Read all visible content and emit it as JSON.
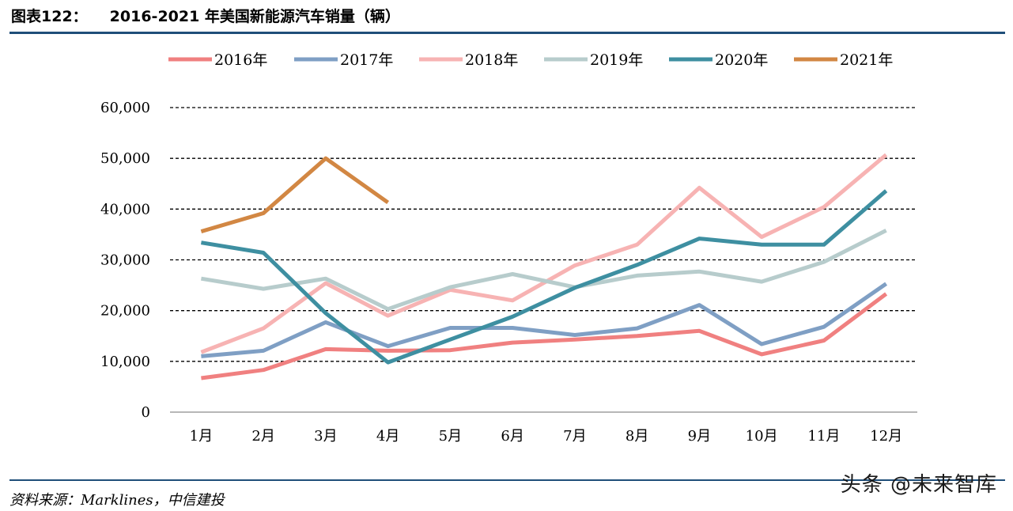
{
  "figure": {
    "label": "图表122：",
    "title": "2016-2021 年美国新能源汽车销量（辆）"
  },
  "source_note": "资料来源：Marklines，中信建投",
  "watermark": "头条 @未来智库",
  "chart_data": {
    "type": "line",
    "title": "2016-2021 年美国新能源汽车销量（辆）",
    "xlabel": "",
    "ylabel": "",
    "categories": [
      "1月",
      "2月",
      "3月",
      "4月",
      "5月",
      "6月",
      "7月",
      "8月",
      "9月",
      "10月",
      "11月",
      "12月"
    ],
    "ylim": [
      0,
      60000
    ],
    "yticks": [
      0,
      10000,
      20000,
      30000,
      40000,
      50000,
      60000
    ],
    "ytick_labels": [
      "0",
      "10,000",
      "20,000",
      "30,000",
      "40,000",
      "50,000",
      "60,000"
    ],
    "grid": "horizontal dashed",
    "legend_position": "top",
    "series": [
      {
        "name": "2016年",
        "color": "#f08080",
        "values": [
          6700,
          8300,
          12400,
          12100,
          12200,
          13700,
          14300,
          15000,
          16000,
          11400,
          14100,
          23300
        ]
      },
      {
        "name": "2017年",
        "color": "#7f9fc4",
        "values": [
          11000,
          12100,
          17700,
          13000,
          16600,
          16600,
          15200,
          16500,
          21100,
          13400,
          16800,
          25300
        ]
      },
      {
        "name": "2018年",
        "color": "#f7b3b3",
        "values": [
          11800,
          16500,
          25400,
          19000,
          24100,
          22000,
          28900,
          33000,
          44200,
          34500,
          40400,
          50700
        ]
      },
      {
        "name": "2019年",
        "color": "#b7cccc",
        "values": [
          26300,
          24300,
          26300,
          20300,
          24600,
          27200,
          24600,
          26900,
          27700,
          25700,
          29600,
          35800
        ]
      },
      {
        "name": "2020年",
        "color": "#3e8fa1",
        "values": [
          33400,
          31400,
          19500,
          9800,
          14300,
          18800,
          24500,
          29000,
          34200,
          33000,
          33000,
          43600
        ]
      },
      {
        "name": "2021年",
        "color": "#d28743",
        "values": [
          35600,
          39200,
          50000,
          41300,
          null,
          null,
          null,
          null,
          null,
          null,
          null,
          null
        ]
      }
    ]
  }
}
